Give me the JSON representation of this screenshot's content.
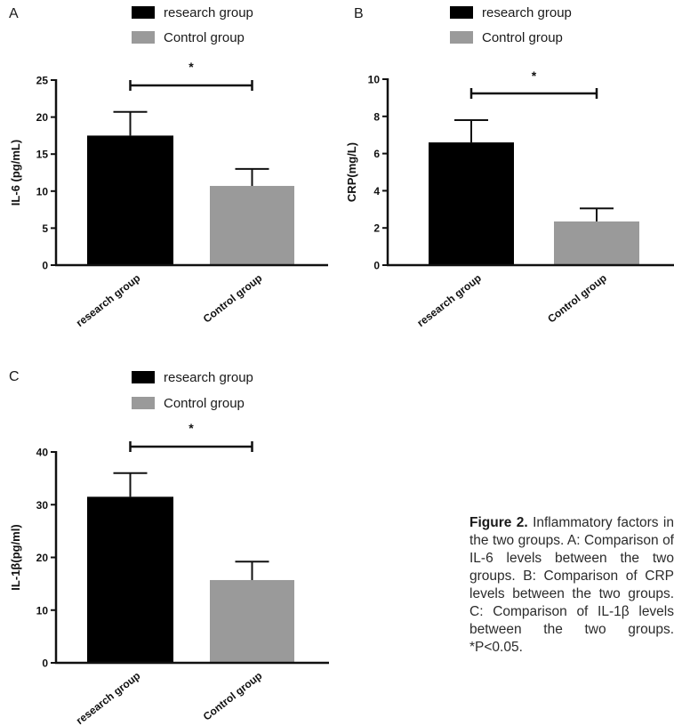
{
  "colors": {
    "research": "#000000",
    "control": "#9a9a9a",
    "axis": "#111111"
  },
  "legend": {
    "research_label": "research group",
    "control_label": "Control group"
  },
  "caption": {
    "label": "Figure 2.",
    "text": "Inflammatory factors in the two groups. A: Comparison of IL-6 levels between the two groups. B: Comparison of CRP levels between the two groups. C: Comparison of IL-1β levels between the two groups. *P<0.05."
  },
  "chart_data": [
    {
      "panel": "A",
      "type": "bar",
      "ylabel": "IL-6 (pg/mL)",
      "categories": [
        "research group",
        "Control group"
      ],
      "values": [
        17.5,
        10.7
      ],
      "errors": [
        3.2,
        2.3
      ],
      "ylim": [
        0,
        25
      ],
      "yticks": [
        0,
        5,
        10,
        15,
        20,
        25
      ],
      "significance": "*",
      "legend": [
        "research group",
        "Control group"
      ],
      "grid": false
    },
    {
      "panel": "B",
      "type": "bar",
      "ylabel": "CRP(mg/L)",
      "categories": [
        "research group",
        "Control group"
      ],
      "values": [
        6.6,
        2.35
      ],
      "errors": [
        1.2,
        0.7
      ],
      "ylim": [
        0,
        10
      ],
      "yticks": [
        0,
        2,
        4,
        6,
        8,
        10
      ],
      "significance": "*",
      "legend": [
        "research group",
        "Control group"
      ],
      "grid": false
    },
    {
      "panel": "C",
      "type": "bar",
      "ylabel": "IL-1β(pg/ml)",
      "categories": [
        "research group",
        "Control group"
      ],
      "values": [
        31.5,
        15.7
      ],
      "errors": [
        4.5,
        3.5
      ],
      "ylim": [
        0,
        40
      ],
      "yticks": [
        0,
        10,
        20,
        30,
        40
      ],
      "significance": "*",
      "legend": [
        "research group",
        "Control group"
      ],
      "grid": false
    }
  ]
}
